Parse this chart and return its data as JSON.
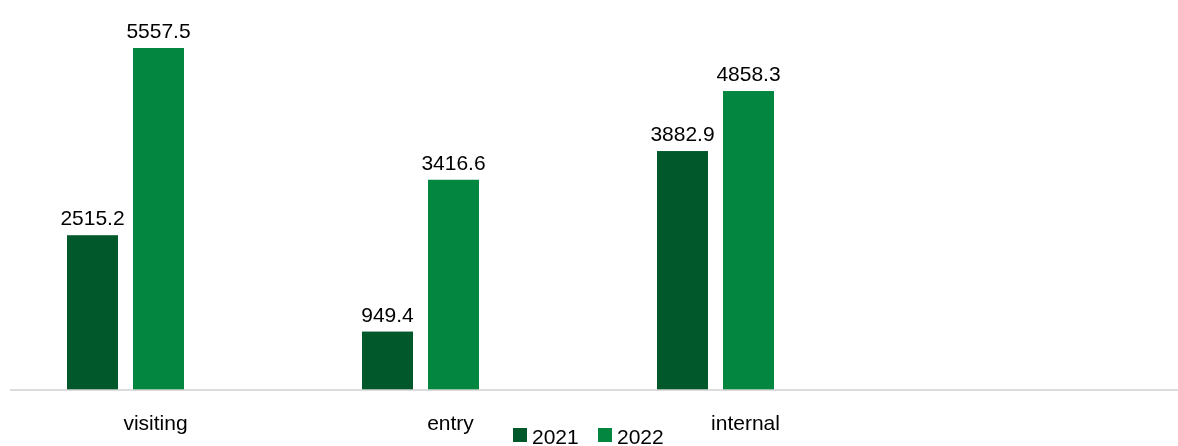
{
  "chart_data": {
    "type": "bar",
    "categories": [
      "visiting",
      "entry",
      "internal",
      null
    ],
    "series": [
      {
        "name": "2021",
        "color": "#00582b",
        "values": [
          2515.2,
          949.4,
          3882.9,
          null
        ]
      },
      {
        "name": "2022",
        "color": "#03863f",
        "values": [
          5557.5,
          3416.6,
          4858.3,
          null
        ]
      }
    ],
    "data_labels": true,
    "legend": "bottom"
  }
}
